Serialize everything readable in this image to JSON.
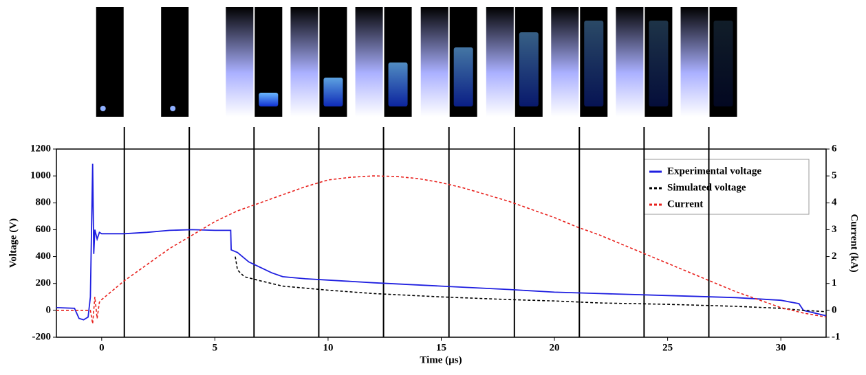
{
  "chart_data": {
    "type": "line",
    "x_label": "Time (µs)",
    "y_label": "Voltage (V)",
    "y2_label": "Current (kA)",
    "xlim": [
      -2,
      32
    ],
    "xticks": [
      0,
      5,
      10,
      15,
      20,
      25,
      30
    ],
    "ylim": [
      -200,
      1200
    ],
    "yticks": [
      -200,
      0,
      200,
      400,
      600,
      800,
      1000,
      1200
    ],
    "y2lim": [
      -1,
      6
    ],
    "y2ticks": [
      -1,
      0,
      1,
      2,
      3,
      4,
      5,
      6
    ],
    "legend": "upper right",
    "frame_times": [
      1.0,
      3.87,
      6.73,
      9.59,
      12.45,
      15.34,
      18.23,
      21.1,
      23.96,
      26.82
    ],
    "series": [
      {
        "name": "Experimental voltage",
        "color": "#1f1fe0",
        "dash": false,
        "x": [
          -2,
          -1.2,
          -1,
          -0.8,
          -0.6,
          -0.5,
          -0.4,
          -0.35,
          -0.3,
          -0.2,
          -0.1,
          0,
          1,
          2,
          3,
          4,
          5,
          5.7,
          5.72,
          6,
          6.5,
          7,
          7.5,
          8,
          9,
          10,
          12,
          15,
          18,
          20,
          22,
          25,
          28,
          30,
          30.8,
          31,
          32
        ],
        "values": [
          20,
          15,
          -60,
          -70,
          -50,
          100,
          1090,
          420,
          600,
          530,
          580,
          570,
          570,
          580,
          595,
          600,
          595,
          595,
          450,
          430,
          360,
          320,
          280,
          250,
          235,
          225,
          205,
          180,
          155,
          135,
          125,
          110,
          95,
          75,
          50,
          0,
          -40
        ]
      },
      {
        "name": "Simulated voltage",
        "color": "#000000",
        "dash": true,
        "x": [
          5.9,
          6,
          6.3,
          7,
          8,
          10,
          12,
          15,
          18,
          20,
          22,
          25,
          28,
          30,
          31,
          32
        ],
        "values": [
          400,
          300,
          250,
          220,
          180,
          150,
          125,
          100,
          80,
          70,
          55,
          45,
          30,
          15,
          0,
          -10
        ]
      },
      {
        "name": "Current",
        "color": "#e8201c",
        "dash": true,
        "axis": "y2",
        "x": [
          -2,
          -0.5,
          -0.4,
          -0.3,
          -0.2,
          -0.1,
          0,
          1,
          2,
          3,
          4,
          5,
          6,
          7,
          8,
          9,
          10,
          11,
          12,
          13,
          14,
          15,
          16,
          17,
          18,
          19,
          20,
          21,
          22,
          23,
          24,
          25,
          26,
          27,
          28,
          29,
          30,
          31,
          32
        ],
        "values": [
          0,
          0,
          -0.5,
          0.5,
          -0.3,
          0.3,
          0.4,
          1.1,
          1.7,
          2.3,
          2.8,
          3.3,
          3.7,
          4.0,
          4.3,
          4.6,
          4.85,
          4.95,
          5.0,
          4.98,
          4.9,
          4.75,
          4.55,
          4.3,
          4.05,
          3.75,
          3.45,
          3.1,
          2.8,
          2.45,
          2.1,
          1.75,
          1.4,
          1.05,
          0.7,
          0.4,
          0.1,
          -0.1,
          -0.25
        ]
      }
    ]
  }
}
